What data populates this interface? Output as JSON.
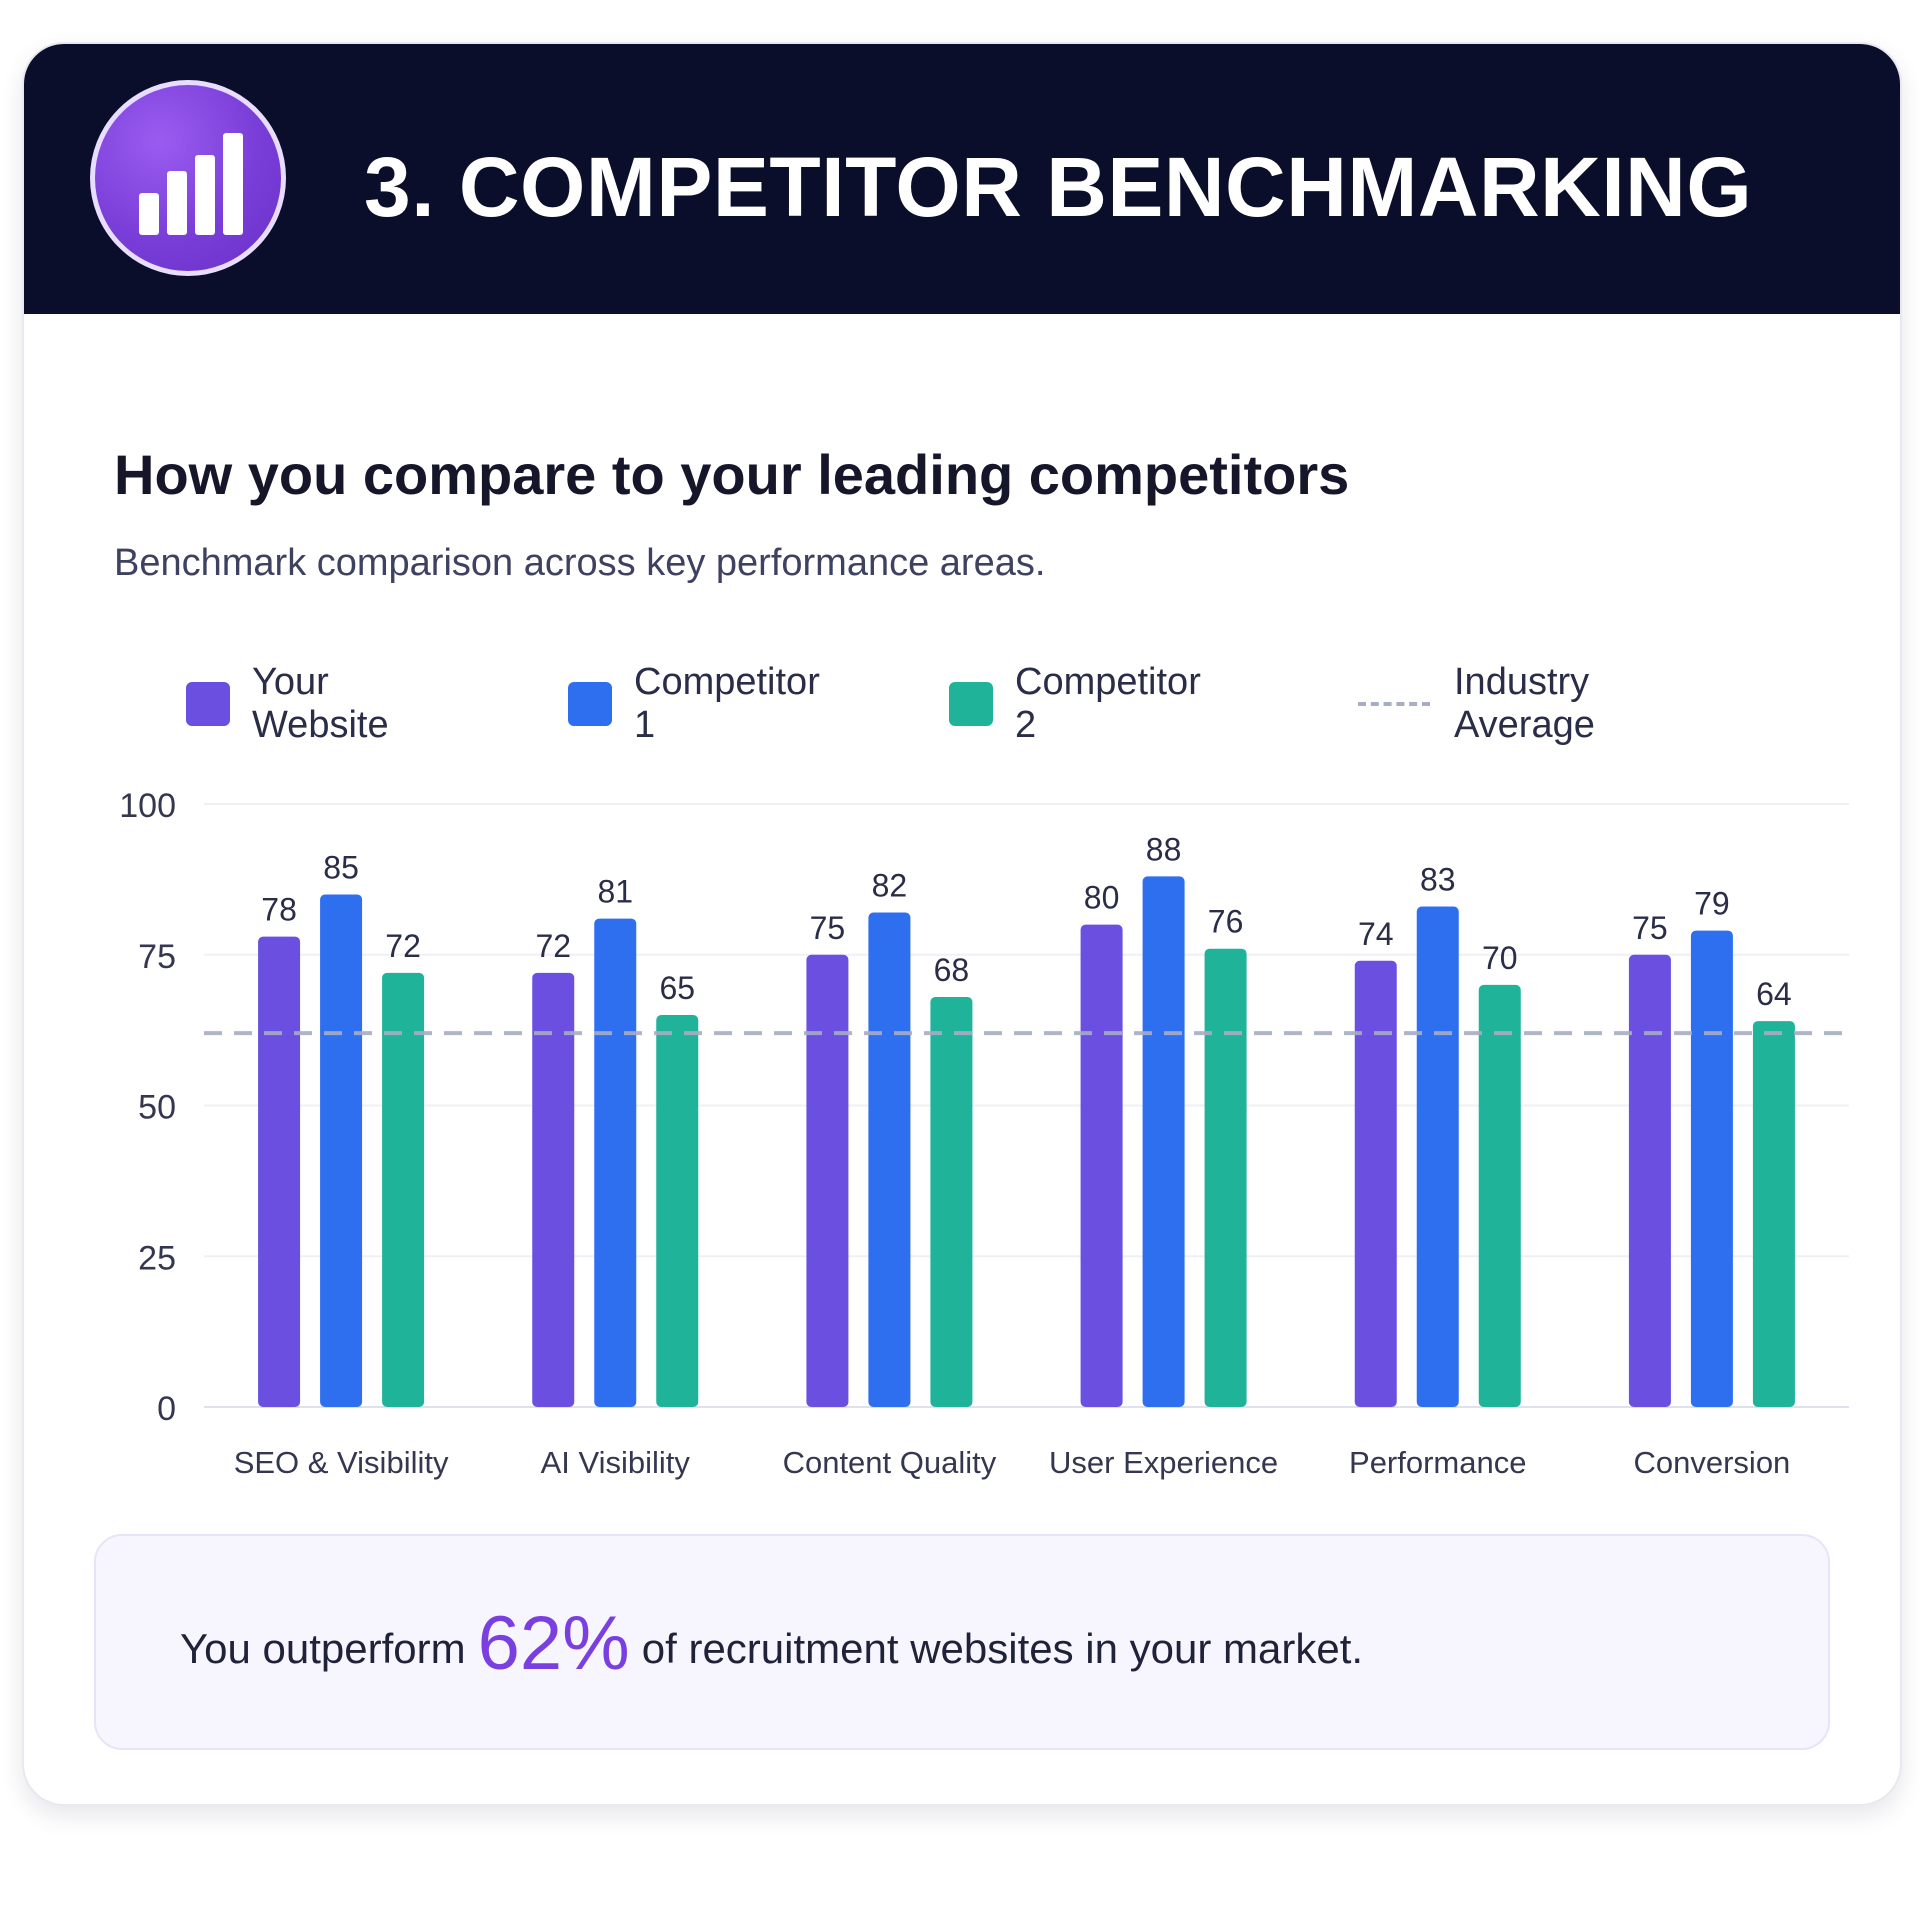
{
  "header": {
    "title": "3. COMPETITOR BENCHMARKING",
    "icon": "bar-chart-icon"
  },
  "section": {
    "heading": "How you compare to your leading competitors",
    "subheading": "Benchmark comparison across key performance areas."
  },
  "legend": [
    {
      "label": "Your Website",
      "color": "#6a4fe0",
      "style": "swatch"
    },
    {
      "label": "Competitor 1",
      "color": "#2e6ff0",
      "style": "swatch"
    },
    {
      "label": "Competitor 2",
      "color": "#1fb39a",
      "style": "swatch"
    },
    {
      "label": "Industry Average",
      "color": "#a7adc4",
      "style": "dashed-line"
    }
  ],
  "chart_data": {
    "type": "bar",
    "categories": [
      "SEO & Visibility",
      "AI Visibility",
      "Content Quality",
      "User Experience",
      "Performance",
      "Conversion"
    ],
    "series": [
      {
        "name": "Your Website",
        "values": [
          78,
          72,
          75,
          80,
          74,
          75
        ],
        "color": "#6a4fe0"
      },
      {
        "name": "Competitor 1",
        "values": [
          85,
          81,
          82,
          88,
          83,
          79
        ],
        "color": "#2e6ff0"
      },
      {
        "name": "Competitor 2",
        "values": [
          72,
          65,
          68,
          76,
          70,
          64
        ],
        "color": "#1fb39a"
      }
    ],
    "reference_line": {
      "name": "Industry Average",
      "value": 62,
      "style": "dashed",
      "color": "#a7adc4"
    },
    "ylim": [
      0,
      100
    ],
    "yticks": [
      0,
      25,
      50,
      75,
      100
    ],
    "grid": true,
    "legend_position": "top",
    "data_labels": true
  },
  "summary": {
    "prefix": "You outperform",
    "highlight": "62%",
    "suffix": "of recruitment websites in your market.",
    "highlight_color": "#7a3fe0"
  }
}
